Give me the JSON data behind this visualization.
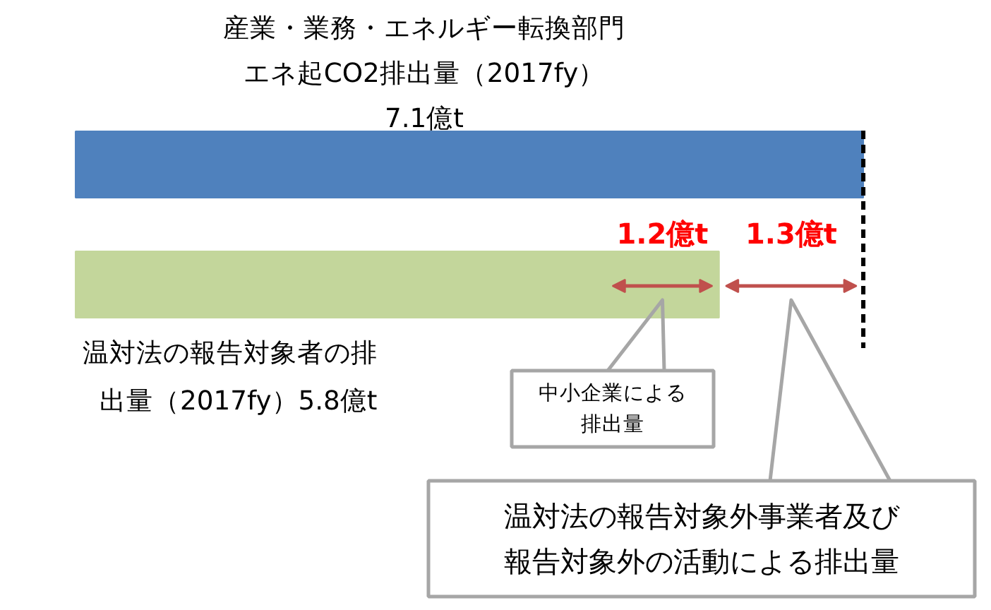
{
  "chart_data": {
    "type": "bar",
    "orientation": "horizontal",
    "categories": [
      null,
      null
    ],
    "values": [
      7.1,
      5.8
    ],
    "colors": [
      "#4f81bd",
      "#c3d69b"
    ],
    "value_labels": [
      "7.1億t",
      "5.8億t"
    ],
    "ref_lines": [
      {
        "axis": "x",
        "value": 7.1,
        "color": "#000000",
        "line_style": "dashed"
      }
    ],
    "annotations": [
      "産業・業務・エネルギー転換部門エネ起CO2排出量（2017fy）",
      "温対法の報告対象者の排出量（2017fy）",
      "1.2億t",
      "1.3億t",
      "中小企業による排出量",
      "温対法の報告対象外事業者及び報告対象外の活動による排出量"
    ],
    "grid": false
  }
}
